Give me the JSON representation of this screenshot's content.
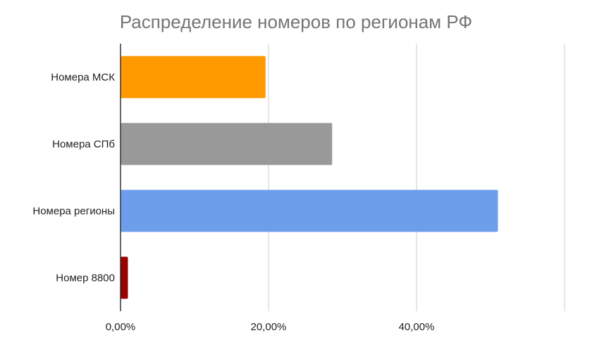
{
  "chart_data": {
    "type": "bar",
    "orientation": "horizontal",
    "title": "Распределение номеров по регионам РФ",
    "categories": [
      "Номера МСК",
      "Номера СПб",
      "Номера регионы",
      "Номер 8800"
    ],
    "values": [
      19.6,
      28.6,
      51.0,
      1.0
    ],
    "colors": [
      "#ff9900",
      "#999999",
      "#6d9eeb",
      "#990000"
    ],
    "x_ticks": [
      {
        "value": 0,
        "label": "0,00%"
      },
      {
        "value": 20,
        "label": "20,00%"
      },
      {
        "value": 40,
        "label": "40,00%"
      }
    ],
    "xlim": [
      0,
      60
    ],
    "grid": true,
    "legend": "none"
  }
}
